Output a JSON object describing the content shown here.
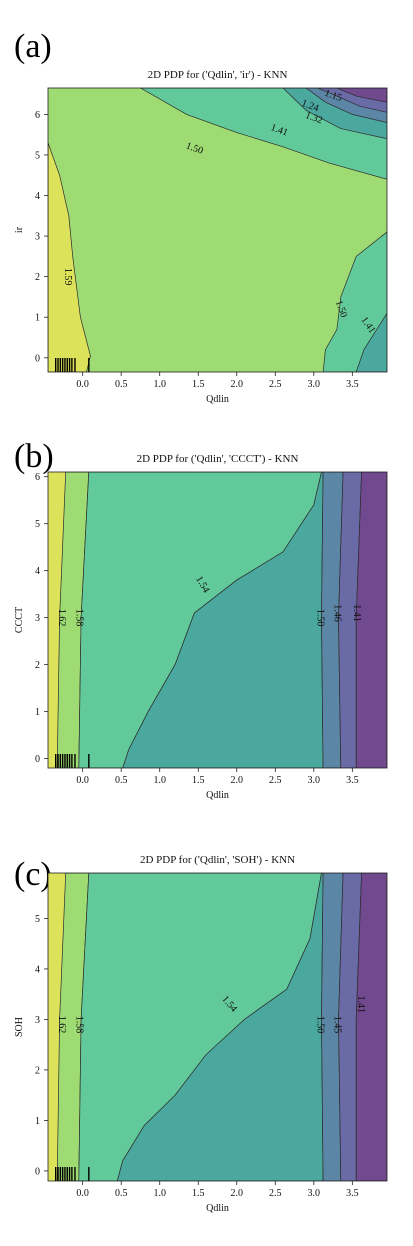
{
  "colors": {
    "level_1": "#DCE35A",
    "level_2": "#9EDB73",
    "level_3": "#62C99A",
    "level_4": "#4AA89F",
    "level_5": "#5C86A5",
    "level_6": "#6A6AA6",
    "level_7": "#70498F",
    "contour_line": "#2b2b2b"
  },
  "chart_data": [
    {
      "type": "heatmap",
      "panel_label": "(a)",
      "title": "2D PDP for ('Qdlin', 'ir') - KNN",
      "xlabel": "Qdlin",
      "ylabel": "ir",
      "xlim": [
        -0.45,
        3.95
      ],
      "ylim": [
        -0.35,
        6.65
      ],
      "xticks": [
        "0.0",
        "0.5",
        "1.0",
        "1.5",
        "2.0",
        "2.5",
        "3.0",
        "3.5"
      ],
      "yticks": [
        "0",
        "1",
        "2",
        "3",
        "4",
        "5",
        "6"
      ],
      "rug_x": [
        -0.35,
        -0.32,
        -0.29,
        -0.26,
        -0.23,
        -0.2,
        -0.17,
        -0.14,
        -0.1,
        0.08
      ],
      "levels": [
        {
          "value": 1.59,
          "label": "1.59",
          "label_x": -0.2,
          "label_y": 2.0,
          "label_angle": 90
        },
        {
          "value": 1.5,
          "label": "1.50",
          "label_x": 1.45,
          "label_y": 5.15,
          "label_angle": 20
        },
        {
          "value": 1.41,
          "label": "1.41",
          "label_x": 2.55,
          "label_y": 5.6,
          "label_angle": 20
        },
        {
          "value": 1.32,
          "label": "1.32",
          "label_x": 3.0,
          "label_y": 5.9,
          "label_angle": 20
        },
        {
          "value": 1.24,
          "label": "1.24",
          "label_x": 2.95,
          "label_y": 6.2,
          "label_angle": 20
        },
        {
          "value": 1.15,
          "label": "1.15",
          "label_x": 3.25,
          "label_y": 6.45,
          "label_angle": 20
        },
        {
          "value": 1.5,
          "label": "1.50",
          "label_x": 3.35,
          "label_y": 1.2,
          "label_angle": 70
        },
        {
          "value": 1.41,
          "label": "1.41",
          "label_x": 3.7,
          "label_y": 0.8,
          "label_angle": 55
        }
      ],
      "regions": [
        {
          "level": "level_2",
          "points": [
            [
              -0.45,
              -0.35
            ],
            [
              3.95,
              -0.35
            ],
            [
              3.95,
              6.65
            ],
            [
              -0.45,
              6.65
            ]
          ]
        },
        {
          "level": "level_1",
          "points": [
            [
              -0.45,
              -0.35
            ],
            [
              0.05,
              -0.35
            ],
            [
              0.1,
              0.05
            ],
            [
              -0.03,
              1.0
            ],
            [
              -0.13,
              2.5
            ],
            [
              -0.18,
              3.5
            ],
            [
              -0.3,
              4.5
            ],
            [
              -0.45,
              5.3
            ]
          ]
        },
        {
          "level": "level_3",
          "points": [
            [
              0.75,
              6.65
            ],
            [
              1.35,
              6.0
            ],
            [
              2.0,
              5.55
            ],
            [
              2.6,
              5.2
            ],
            [
              3.2,
              4.8
            ],
            [
              3.95,
              4.4
            ],
            [
              3.95,
              6.65
            ]
          ]
        },
        {
          "level": "level_4",
          "points": [
            [
              2.6,
              6.65
            ],
            [
              2.9,
              6.1
            ],
            [
              3.35,
              5.65
            ],
            [
              3.95,
              5.4
            ],
            [
              3.95,
              6.65
            ]
          ]
        },
        {
          "level": "level_5",
          "points": [
            [
              2.9,
              6.65
            ],
            [
              3.15,
              6.3
            ],
            [
              3.5,
              6.0
            ],
            [
              3.95,
              5.8
            ],
            [
              3.95,
              6.65
            ]
          ]
        },
        {
          "level": "level_6",
          "points": [
            [
              3.05,
              6.65
            ],
            [
              3.3,
              6.45
            ],
            [
              3.6,
              6.2
            ],
            [
              3.95,
              6.05
            ],
            [
              3.95,
              6.65
            ]
          ]
        },
        {
          "level": "level_7",
          "points": [
            [
              3.3,
              6.65
            ],
            [
              3.55,
              6.45
            ],
            [
              3.95,
              6.3
            ],
            [
              3.95,
              6.65
            ]
          ]
        },
        {
          "level": "level_3",
          "points": [
            [
              3.12,
              -0.35
            ],
            [
              3.15,
              0.2
            ],
            [
              3.3,
              0.7
            ],
            [
              3.35,
              1.5
            ],
            [
              3.55,
              2.5
            ],
            [
              3.95,
              3.1
            ],
            [
              3.95,
              -0.35
            ]
          ]
        },
        {
          "level": "level_4",
          "points": [
            [
              3.55,
              -0.35
            ],
            [
              3.65,
              0.2
            ],
            [
              3.95,
              1.1
            ],
            [
              3.95,
              -0.35
            ]
          ]
        }
      ]
    },
    {
      "type": "heatmap",
      "panel_label": "(b)",
      "title": "2D PDP for ('Qdlin', 'CCCT') - KNN",
      "xlabel": "Qdlin",
      "ylabel": "CCCT",
      "xlim": [
        -0.45,
        3.95
      ],
      "ylim": [
        -0.2,
        6.1
      ],
      "xticks": [
        "0.0",
        "0.5",
        "1.0",
        "1.5",
        "2.0",
        "2.5",
        "3.0",
        "3.5"
      ],
      "yticks": [
        "0",
        "1",
        "2",
        "3",
        "4",
        "5",
        "6"
      ],
      "rug_x": [
        -0.35,
        -0.32,
        -0.29,
        -0.26,
        -0.23,
        -0.2,
        -0.17,
        -0.14,
        -0.1,
        0.08
      ],
      "levels": [
        {
          "value": 1.62,
          "label": "1.62",
          "label_x": -0.28,
          "label_y": 3.0,
          "label_angle": 90
        },
        {
          "value": 1.58,
          "label": "1.58",
          "label_x": -0.05,
          "label_y": 3.0,
          "label_angle": 90
        },
        {
          "value": 1.54,
          "label": "1.54",
          "label_x": 1.55,
          "label_y": 3.7,
          "label_angle": 60
        },
        {
          "value": 1.5,
          "label": "1.50",
          "label_x": 3.08,
          "label_y": 3.0,
          "label_angle": 90
        },
        {
          "value": 1.46,
          "label": "1.46",
          "label_x": 3.3,
          "label_y": 3.1,
          "label_angle": 90
        },
        {
          "value": 1.41,
          "label": "1.41",
          "label_x": 3.55,
          "label_y": 3.1,
          "label_angle": 90
        }
      ],
      "regions": [
        {
          "level": "level_1",
          "points": [
            [
              -0.45,
              -0.2
            ],
            [
              -0.33,
              -0.2
            ],
            [
              -0.3,
              3.0
            ],
            [
              -0.22,
              6.1
            ],
            [
              -0.45,
              6.1
            ]
          ]
        },
        {
          "level": "level_2",
          "points": [
            [
              -0.33,
              -0.2
            ],
            [
              -0.05,
              -0.2
            ],
            [
              -0.02,
              3.0
            ],
            [
              0.08,
              6.1
            ],
            [
              -0.22,
              6.1
            ],
            [
              -0.3,
              3.0
            ]
          ]
        },
        {
          "level": "level_3",
          "points": [
            [
              -0.05,
              -0.2
            ],
            [
              0.52,
              -0.2
            ],
            [
              0.6,
              0.2
            ],
            [
              0.85,
              1.0
            ],
            [
              1.2,
              2.0
            ],
            [
              1.45,
              3.1
            ],
            [
              2.0,
              3.8
            ],
            [
              2.6,
              4.4
            ],
            [
              3.0,
              5.4
            ],
            [
              3.1,
              6.1
            ],
            [
              0.08,
              6.1
            ],
            [
              -0.02,
              3.0
            ]
          ]
        },
        {
          "level": "level_4",
          "points": [
            [
              0.52,
              -0.2
            ],
            [
              3.12,
              -0.2
            ],
            [
              3.1,
              3.0
            ],
            [
              3.12,
              6.1
            ],
            [
              3.1,
              6.1
            ],
            [
              3.0,
              5.4
            ],
            [
              2.6,
              4.4
            ],
            [
              2.0,
              3.8
            ],
            [
              1.45,
              3.1
            ],
            [
              1.2,
              2.0
            ],
            [
              0.85,
              1.0
            ],
            [
              0.6,
              0.2
            ]
          ]
        },
        {
          "level": "level_5",
          "points": [
            [
              3.12,
              -0.2
            ],
            [
              3.35,
              -0.2
            ],
            [
              3.32,
              3.0
            ],
            [
              3.38,
              6.1
            ],
            [
              3.12,
              6.1
            ],
            [
              3.1,
              3.0
            ]
          ]
        },
        {
          "level": "level_6",
          "points": [
            [
              3.35,
              -0.2
            ],
            [
              3.55,
              -0.2
            ],
            [
              3.55,
              3.0
            ],
            [
              3.62,
              6.1
            ],
            [
              3.38,
              6.1
            ],
            [
              3.32,
              3.0
            ]
          ]
        },
        {
          "level": "level_7",
          "points": [
            [
              3.55,
              -0.2
            ],
            [
              3.95,
              -0.2
            ],
            [
              3.95,
              6.1
            ],
            [
              3.62,
              6.1
            ],
            [
              3.55,
              3.0
            ]
          ]
        }
      ]
    },
    {
      "type": "heatmap",
      "panel_label": "(c)",
      "title": "2D PDP for ('Qdlin', 'SOH') - KNN",
      "xlabel": "Qdlin",
      "ylabel": "SOH",
      "xlim": [
        -0.45,
        3.95
      ],
      "ylim": [
        -0.2,
        5.9
      ],
      "xticks": [
        "0.0",
        "0.5",
        "1.0",
        "1.5",
        "2.0",
        "2.5",
        "3.0",
        "3.5"
      ],
      "yticks": [
        "0",
        "1",
        "2",
        "3",
        "4",
        "5"
      ],
      "rug_x": [
        -0.35,
        -0.32,
        -0.29,
        -0.26,
        -0.23,
        -0.2,
        -0.17,
        -0.14,
        -0.1,
        0.08
      ],
      "levels": [
        {
          "value": 1.62,
          "label": "1.62",
          "label_x": -0.28,
          "label_y": 2.9,
          "label_angle": 90
        },
        {
          "value": 1.58,
          "label": "1.58",
          "label_x": -0.05,
          "label_y": 2.9,
          "label_angle": 90
        },
        {
          "value": 1.54,
          "label": "1.54",
          "label_x": 1.9,
          "label_y": 3.3,
          "label_angle": 50
        },
        {
          "value": 1.5,
          "label": "1.50",
          "label_x": 3.08,
          "label_y": 2.9,
          "label_angle": 90
        },
        {
          "value": 1.45,
          "label": "1.45",
          "label_x": 3.3,
          "label_y": 2.9,
          "label_angle": 90
        },
        {
          "value": 1.41,
          "label": "1.41",
          "label_x": 3.6,
          "label_y": 3.3,
          "label_angle": 90
        }
      ],
      "regions": [
        {
          "level": "level_1",
          "points": [
            [
              -0.45,
              -0.2
            ],
            [
              -0.33,
              -0.2
            ],
            [
              -0.3,
              3.0
            ],
            [
              -0.22,
              5.9
            ],
            [
              -0.45,
              5.9
            ]
          ]
        },
        {
          "level": "level_2",
          "points": [
            [
              -0.33,
              -0.2
            ],
            [
              -0.05,
              -0.2
            ],
            [
              -0.02,
              3.0
            ],
            [
              0.08,
              5.9
            ],
            [
              -0.22,
              5.9
            ],
            [
              -0.3,
              3.0
            ]
          ]
        },
        {
          "level": "level_3",
          "points": [
            [
              -0.05,
              -0.2
            ],
            [
              0.45,
              -0.2
            ],
            [
              0.52,
              0.2
            ],
            [
              0.8,
              0.9
            ],
            [
              1.2,
              1.5
            ],
            [
              1.6,
              2.3
            ],
            [
              2.1,
              3.0
            ],
            [
              2.65,
              3.6
            ],
            [
              2.95,
              4.6
            ],
            [
              3.1,
              5.9
            ],
            [
              0.08,
              5.9
            ],
            [
              -0.02,
              3.0
            ]
          ]
        },
        {
          "level": "level_4",
          "points": [
            [
              0.45,
              -0.2
            ],
            [
              3.12,
              -0.2
            ],
            [
              3.1,
              3.0
            ],
            [
              3.12,
              5.9
            ],
            [
              3.1,
              5.9
            ],
            [
              2.95,
              4.6
            ],
            [
              2.65,
              3.6
            ],
            [
              2.1,
              3.0
            ],
            [
              1.6,
              2.3
            ],
            [
              1.2,
              1.5
            ],
            [
              0.8,
              0.9
            ],
            [
              0.52,
              0.2
            ]
          ]
        },
        {
          "level": "level_5",
          "points": [
            [
              3.12,
              -0.2
            ],
            [
              3.35,
              -0.2
            ],
            [
              3.32,
              3.0
            ],
            [
              3.38,
              5.9
            ],
            [
              3.12,
              5.9
            ],
            [
              3.1,
              3.0
            ]
          ]
        },
        {
          "level": "level_6",
          "points": [
            [
              3.35,
              -0.2
            ],
            [
              3.55,
              -0.2
            ],
            [
              3.55,
              3.0
            ],
            [
              3.62,
              5.9
            ],
            [
              3.38,
              5.9
            ],
            [
              3.32,
              3.0
            ]
          ]
        },
        {
          "level": "level_7",
          "points": [
            [
              3.55,
              -0.2
            ],
            [
              3.95,
              -0.2
            ],
            [
              3.95,
              5.9
            ],
            [
              3.62,
              5.9
            ],
            [
              3.55,
              3.0
            ]
          ]
        }
      ]
    }
  ]
}
